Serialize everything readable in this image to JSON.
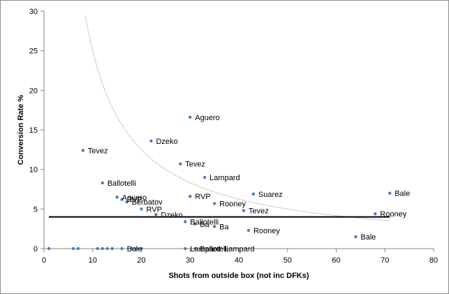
{
  "chart_data": {
    "type": "scatter",
    "xlabel": "Shots from outside box (not inc DFKs)",
    "ylabel": "Conversion Rate %",
    "xlim": [
      0,
      80
    ],
    "ylim": [
      0,
      30
    ],
    "x_ticks": [
      0,
      10,
      20,
      30,
      40,
      50,
      60,
      70,
      80
    ],
    "y_ticks": [
      0,
      5,
      10,
      15,
      20,
      25,
      30
    ],
    "grid": false,
    "legend": "none",
    "marker_color": "#4a7ebb",
    "reference_line": {
      "y": 4,
      "x_range": [
        1,
        71
      ],
      "color": "#000000"
    },
    "trend_curve": {
      "shape": "hyperbola",
      "k": 250,
      "color": "#808080",
      "style": "dotted",
      "x_range": [
        6.5,
        71
      ]
    },
    "points": [
      {
        "x": 30,
        "y": 16.6,
        "label": "Aguero"
      },
      {
        "x": 22,
        "y": 13.6,
        "label": "Dzeko"
      },
      {
        "x": 8,
        "y": 12.4,
        "label": "Tevez"
      },
      {
        "x": 28,
        "y": 10.7,
        "label": "Tevez"
      },
      {
        "x": 33,
        "y": 9.0,
        "label": "Lampard"
      },
      {
        "x": 12,
        "y": 8.3,
        "label": "Ballotelli"
      },
      {
        "x": 71,
        "y": 7.0,
        "label": "Bale"
      },
      {
        "x": 43,
        "y": 6.9,
        "label": "Suarez"
      },
      {
        "x": 30,
        "y": 6.6,
        "label": "RVP"
      },
      {
        "x": 15,
        "y": 6.5,
        "label": "Aguero"
      },
      {
        "x": 16,
        "y": 6.2,
        "label": "RVP"
      },
      {
        "x": 17,
        "y": 5.9,
        "label": "Berbatov"
      },
      {
        "x": 35,
        "y": 5.7,
        "label": "Rooney"
      },
      {
        "x": 20,
        "y": 5.0,
        "label": "RVP"
      },
      {
        "x": 41,
        "y": 4.8,
        "label": "Tevez"
      },
      {
        "x": 23,
        "y": 4.3,
        "label": "Dzeko"
      },
      {
        "x": 68,
        "y": 4.4,
        "label": "Rooney"
      },
      {
        "x": 29,
        "y": 3.4,
        "label": "Ballotelli"
      },
      {
        "x": 31,
        "y": 3.1,
        "label": "Ba"
      },
      {
        "x": 35,
        "y": 2.8,
        "label": "Ba"
      },
      {
        "x": 42,
        "y": 2.3,
        "label": "Rooney"
      },
      {
        "x": 64,
        "y": 1.5,
        "label": "Bale"
      },
      {
        "x": 16,
        "y": 0,
        "label": "Bale"
      },
      {
        "x": 29,
        "y": 0,
        "label": "Lampard"
      },
      {
        "x": 31,
        "y": 0,
        "label": "Ballotelli"
      },
      {
        "x": 36,
        "y": 0,
        "label": "Lampard"
      },
      {
        "x": 1,
        "y": 0,
        "label": ""
      },
      {
        "x": 6,
        "y": 0,
        "label": ""
      },
      {
        "x": 7,
        "y": 0,
        "label": ""
      },
      {
        "x": 11,
        "y": 0,
        "label": ""
      },
      {
        "x": 12,
        "y": 0,
        "label": ""
      },
      {
        "x": 13,
        "y": 0,
        "label": ""
      },
      {
        "x": 14,
        "y": 0,
        "label": ""
      },
      {
        "x": 18,
        "y": 0,
        "label": ""
      },
      {
        "x": 19,
        "y": 0,
        "label": ""
      },
      {
        "x": 20,
        "y": 0,
        "label": ""
      }
    ]
  }
}
